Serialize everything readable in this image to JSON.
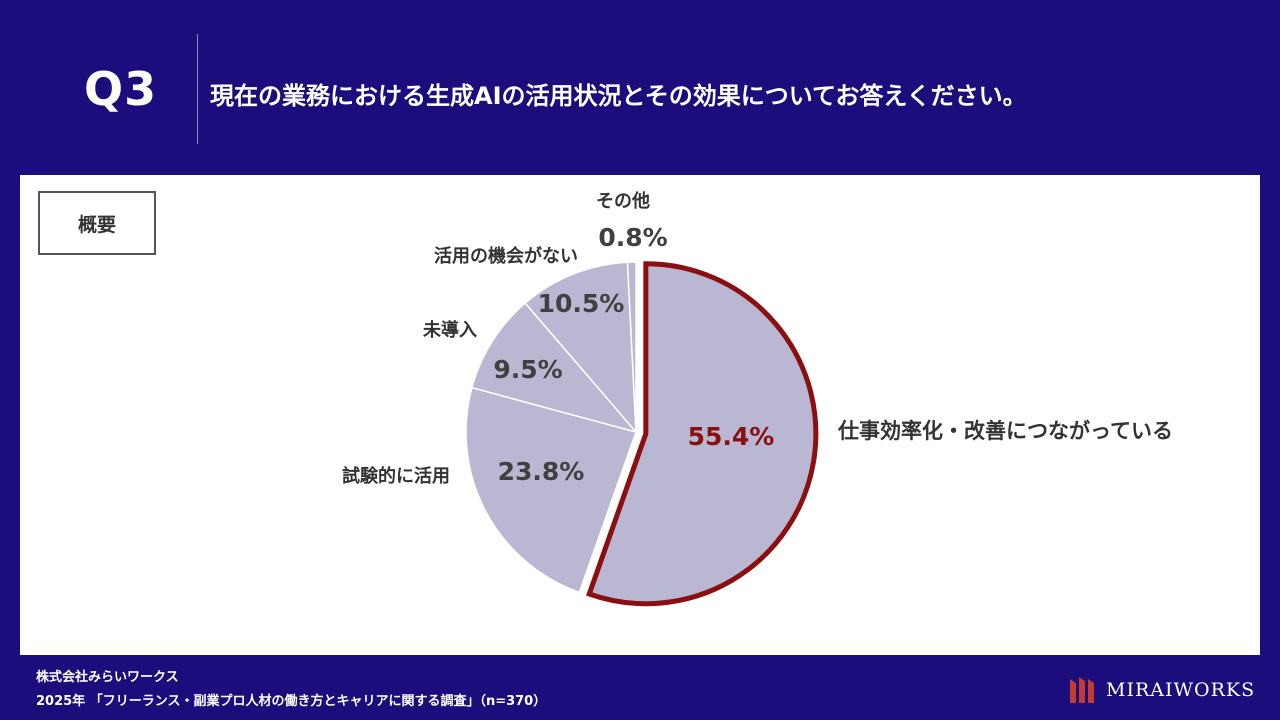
{
  "question": {
    "number": "Q3",
    "text": "現在の業務における生成AIの活用状況とその効果についてお答えください。"
  },
  "summary_label": "概要",
  "chart_data": {
    "type": "pie",
    "title": "",
    "start": "12 o'clock, clockwise",
    "slice_color": "#b9b7d2",
    "highlight_color": "#8b0f10",
    "categories": [
      "仕事効率化・改善につながっている",
      "試験的に活用",
      "未導入",
      "活用の機会がない",
      "その他"
    ],
    "values": [
      55.4,
      23.8,
      9.5,
      10.5,
      0.8
    ],
    "value_labels": [
      "55.4%",
      "23.8%",
      "9.5%",
      "10.5%",
      "0.8%"
    ],
    "highlighted": "仕事効率化・改善につながっている"
  },
  "footer": {
    "company": "株式会社みらいワークス",
    "survey": "2025年 「フリーランス・副業プロ人材の働き方とキャリアに関する調査」（n=370）"
  },
  "logo": {
    "text": "MIRAIWORKS",
    "icon": "miraiworks-logo-icon"
  }
}
